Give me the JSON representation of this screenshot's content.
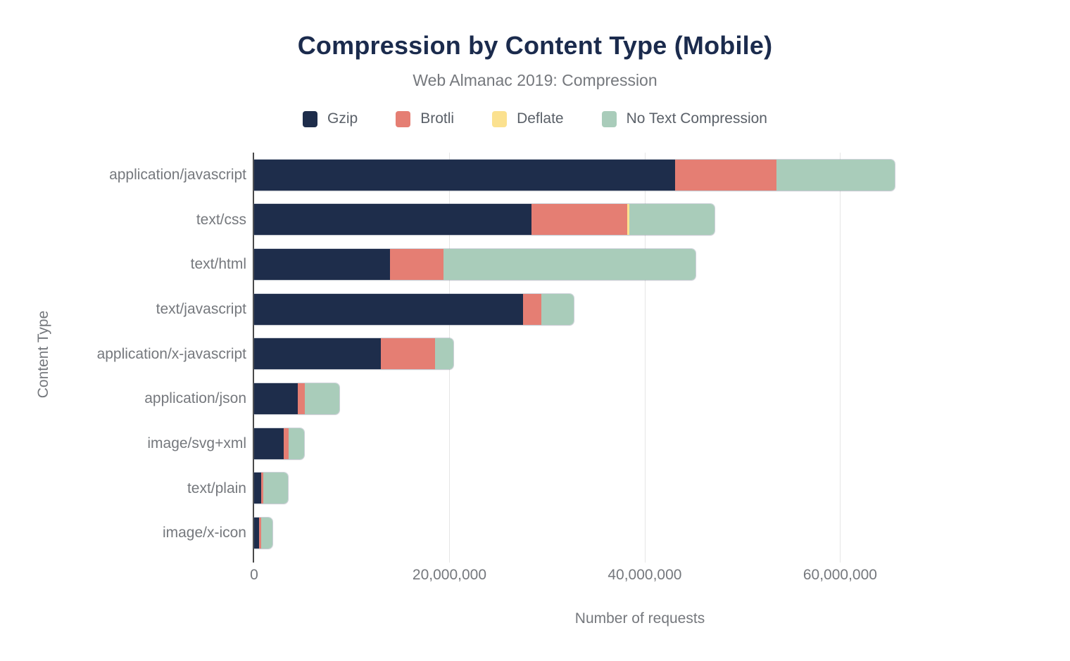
{
  "chart_data": {
    "type": "bar",
    "orientation": "horizontal",
    "stacked": true,
    "title": "Compression by Content Type (Mobile)",
    "subtitle": "Web Almanac 2019: Compression",
    "xlabel": "Number of requests",
    "ylabel": "Content Type",
    "xlim": [
      0,
      79000000
    ],
    "grid": true,
    "legend_position": "top",
    "x_ticks": [
      {
        "value": 0,
        "label": "0"
      },
      {
        "value": 20000000,
        "label": "20,000,000"
      },
      {
        "value": 40000000,
        "label": "40,000,000"
      },
      {
        "value": 60000000,
        "label": "60,000,000"
      }
    ],
    "categories": [
      "application/javascript",
      "text/css",
      "text/html",
      "text/javascript",
      "application/x-javascript",
      "application/json",
      "image/svg+xml",
      "text/plain",
      "image/x-icon"
    ],
    "series": [
      {
        "name": "Gzip",
        "color": "#1e2d4b",
        "values": [
          43100000,
          28400000,
          13900000,
          27500000,
          13000000,
          4500000,
          3000000,
          700000,
          500000
        ]
      },
      {
        "name": "Brotli",
        "color": "#e57e73",
        "values": [
          10400000,
          9800000,
          5500000,
          1900000,
          5500000,
          700000,
          500000,
          250000,
          250000
        ]
      },
      {
        "name": "Deflate",
        "color": "#fbe18f",
        "values": [
          0,
          250000,
          0,
          0,
          0,
          0,
          0,
          0,
          0
        ]
      },
      {
        "name": "No Text Compression",
        "color": "#a9ccba",
        "values": [
          12100000,
          8700000,
          25800000,
          3300000,
          1900000,
          3500000,
          1600000,
          2500000,
          1150000
        ]
      }
    ]
  },
  "style": {
    "title_color": "#1b2b4d",
    "text_color": "#75787d",
    "legend_text_color": "#5a6068",
    "gridline_color": "#e6e6e6",
    "axis_line_color": "#4a4a4a",
    "background": "#ffffff"
  }
}
